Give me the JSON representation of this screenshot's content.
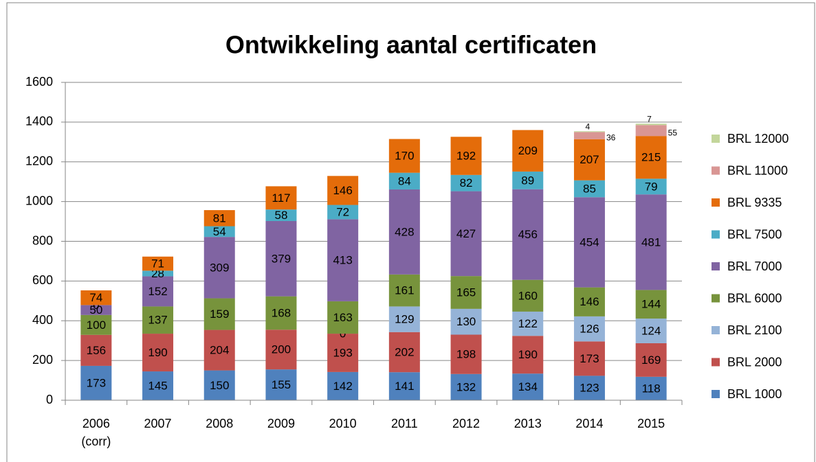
{
  "chart_data": {
    "type": "stacked_bar",
    "title": "Ontwikkeling aantal certificaten",
    "categories": [
      "2006 (corr)",
      "2007",
      "2008",
      "2009",
      "2010",
      "2011",
      "2012",
      "2013",
      "2014",
      "2015"
    ],
    "series": [
      {
        "name": "BRL 1000",
        "color": "#4f81bd",
        "values": [
          173,
          145,
          150,
          155,
          142,
          141,
          132,
          134,
          123,
          118
        ]
      },
      {
        "name": "BRL 2000",
        "color": "#c0504d",
        "values": [
          156,
          190,
          204,
          200,
          193,
          202,
          198,
          190,
          173,
          169
        ]
      },
      {
        "name": "BRL 2100",
        "color": "#95b3d7",
        "values": [
          null,
          null,
          null,
          null,
          0,
          129,
          130,
          122,
          126,
          124
        ]
      },
      {
        "name": "BRL 6000",
        "color": "#77933c",
        "values": [
          100,
          137,
          159,
          168,
          163,
          161,
          165,
          160,
          146,
          144
        ]
      },
      {
        "name": "BRL 7000",
        "color": "#8064a2",
        "values": [
          50,
          152,
          309,
          379,
          413,
          428,
          427,
          456,
          454,
          481
        ]
      },
      {
        "name": "BRL 7500",
        "color": "#4bacc6",
        "values": [
          0,
          28,
          54,
          58,
          72,
          84,
          82,
          89,
          85,
          79
        ]
      },
      {
        "name": "BRL 9335",
        "color": "#e46c0a",
        "values": [
          74,
          71,
          81,
          117,
          146,
          170,
          192,
          209,
          207,
          215
        ]
      },
      {
        "name": "BRL 11000",
        "color": "#d99694",
        "values": [
          null,
          null,
          null,
          null,
          null,
          null,
          null,
          null,
          36,
          55
        ]
      },
      {
        "name": "BRL 12000",
        "color": "#c3d69b",
        "values": [
          null,
          null,
          null,
          null,
          null,
          null,
          null,
          null,
          4,
          7
        ]
      }
    ],
    "ylim": [
      0,
      1600
    ],
    "yticks": [
      0,
      200,
      400,
      600,
      800,
      1000,
      1200,
      1400,
      1600
    ],
    "grid": true,
    "legend": "right"
  }
}
